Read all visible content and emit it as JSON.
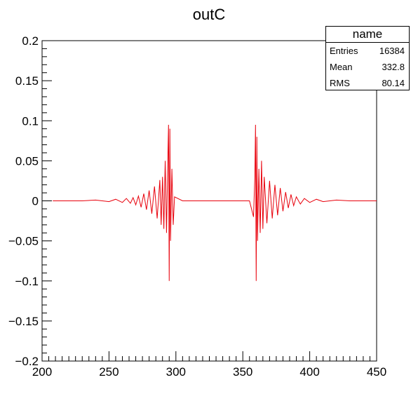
{
  "chart_data": {
    "type": "line",
    "title": "outC",
    "xlabel": "",
    "ylabel": "",
    "xlim": [
      200,
      450
    ],
    "ylim": [
      -0.2,
      0.2
    ],
    "x_ticks": [
      200,
      250,
      300,
      350,
      400,
      450
    ],
    "x_tick_labels": [
      "200",
      "250",
      "300",
      "350",
      "400",
      "450"
    ],
    "y_ticks": [
      -0.2,
      -0.15,
      -0.1,
      -0.05,
      0,
      0.05,
      0.1,
      0.15,
      0.2
    ],
    "y_tick_labels": [
      "−0.2",
      "−0.15",
      "−0.1",
      "−0.05",
      "0",
      "0.05",
      "0.1",
      "0.15",
      "0.2"
    ],
    "grid": false,
    "series": [
      {
        "color": "#e8000b",
        "x": [
          208,
          230,
          240,
          250,
          255,
          260,
          263,
          266,
          268,
          270,
          272,
          274,
          276,
          278,
          280,
          282,
          284,
          286,
          288,
          289,
          290,
          291,
          292,
          293,
          294,
          294.5,
          295,
          295.5,
          296,
          297,
          298,
          299,
          305,
          320,
          340,
          355,
          358,
          359,
          359.5,
          360,
          360.5,
          361,
          362,
          363,
          364,
          365,
          366,
          368,
          370,
          372,
          374,
          376,
          378,
          380,
          382,
          384,
          386,
          388,
          390,
          393,
          396,
          400,
          405,
          410,
          420,
          430,
          450
        ],
        "y": [
          0,
          0,
          0.001,
          -0.001,
          0.002,
          -0.002,
          0.003,
          -0.003,
          0.004,
          -0.005,
          0.006,
          -0.008,
          0.009,
          -0.011,
          0.013,
          -0.016,
          0.018,
          -0.022,
          0.026,
          -0.03,
          0.03,
          -0.035,
          0.05,
          -0.04,
          0.055,
          0.095,
          -0.1,
          0.09,
          -0.05,
          0.04,
          -0.03,
          0.005,
          0,
          0,
          0,
          0,
          -0.02,
          0.03,
          0.095,
          -0.1,
          0.08,
          -0.05,
          0.04,
          -0.04,
          0.05,
          -0.035,
          0.03,
          -0.028,
          0.025,
          -0.022,
          0.02,
          -0.018,
          0.016,
          -0.013,
          0.011,
          -0.009,
          0.008,
          -0.006,
          0.005,
          -0.004,
          0.003,
          -0.002,
          0.002,
          -0.001,
          0.001,
          0,
          0
        ]
      }
    ]
  },
  "stats_box": {
    "title": "name",
    "rows": [
      {
        "label": "Entries",
        "value": "16384"
      },
      {
        "label": "Mean",
        "value": "332.8"
      },
      {
        "label": "RMS",
        "value": "80.14"
      }
    ]
  }
}
